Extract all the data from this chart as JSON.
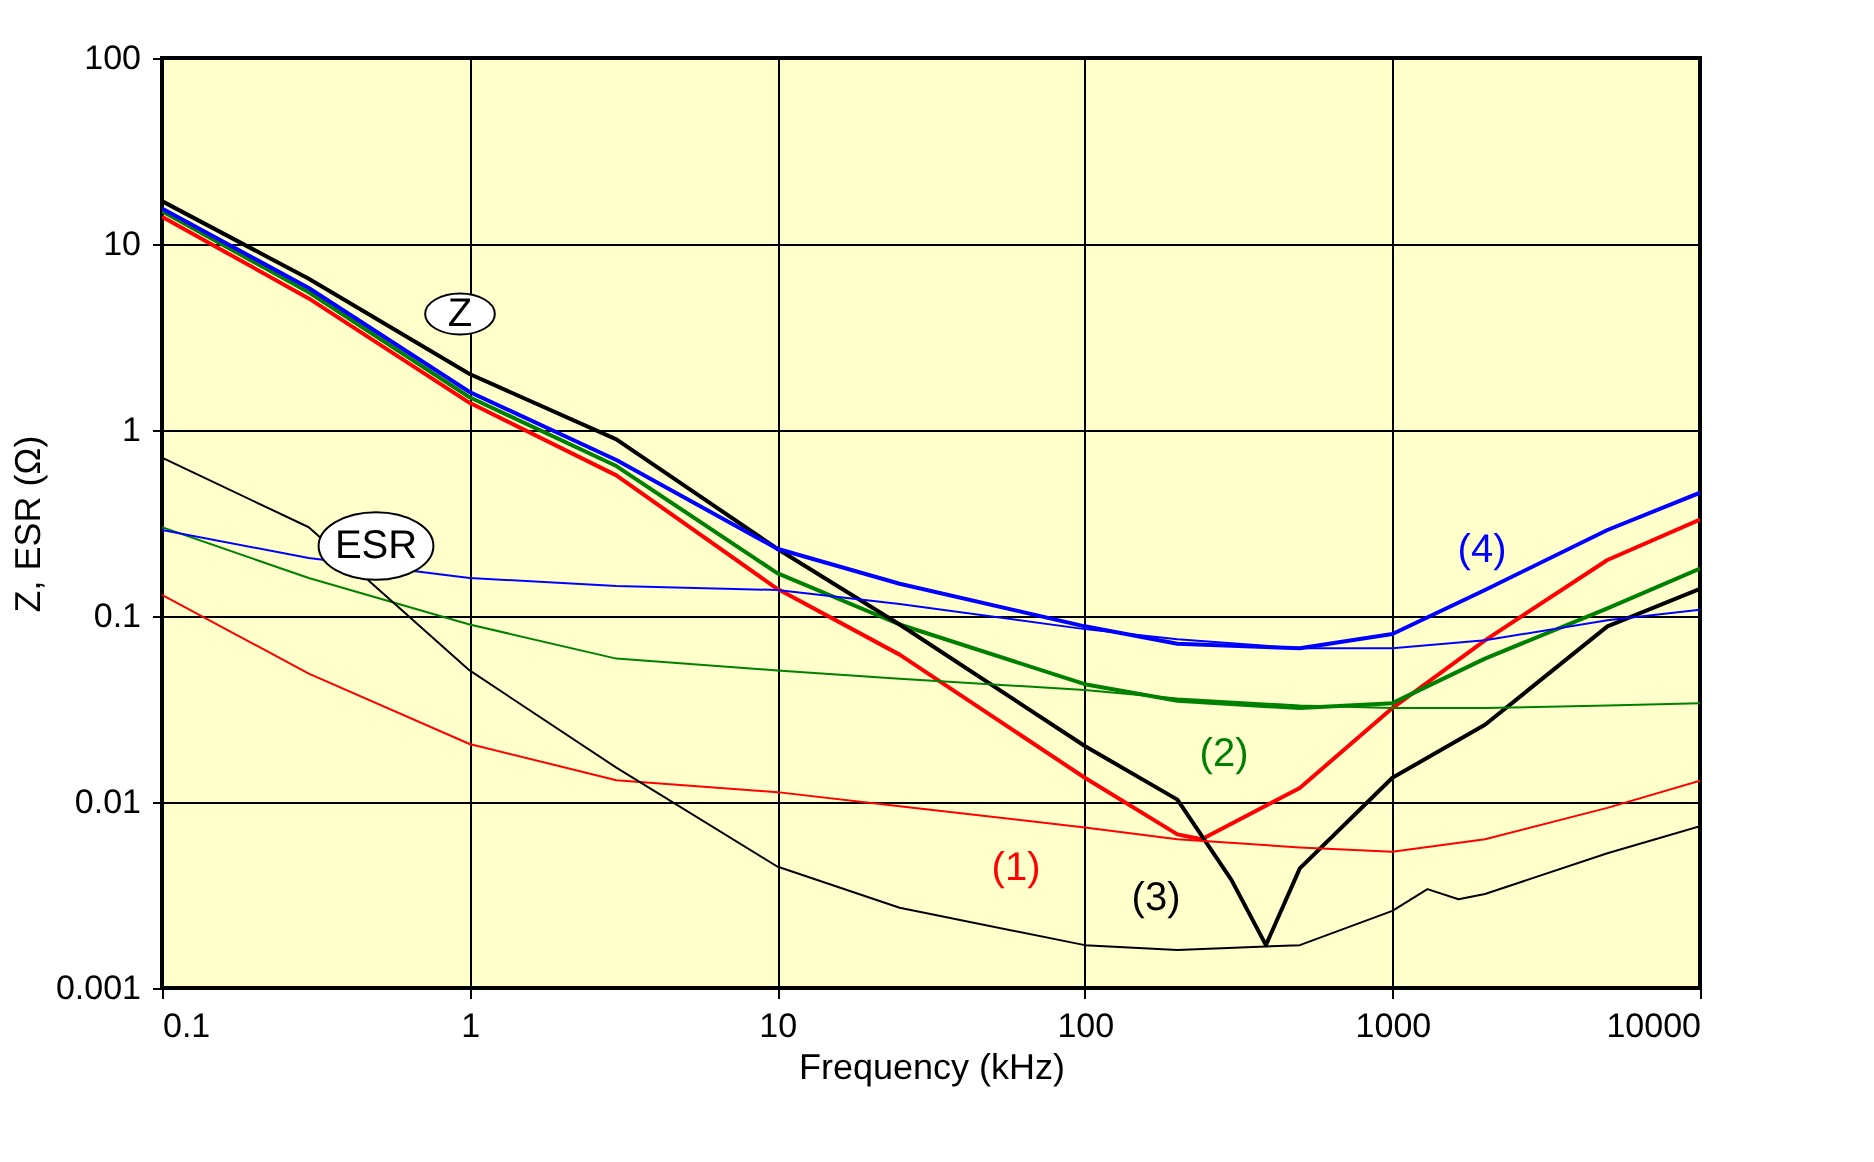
{
  "chart_data": {
    "type": "line",
    "xlabel": "Frequency (kHz)",
    "ylabel": "Z, ESR (Ω)",
    "log": "xy",
    "grid": true,
    "xlim": [
      0.1,
      10000
    ],
    "ylim": [
      0.001,
      100
    ],
    "xticks": [
      0.1,
      1,
      10,
      100,
      1000,
      10000
    ],
    "yticks": [
      0.001,
      0.01,
      0.1,
      1,
      10,
      100
    ],
    "series": [
      {
        "color": "#ff0000",
        "x": [
          0.1,
          0.3,
          1,
          3,
          10,
          25,
          100,
          200,
          240,
          500,
          1000,
          2000,
          5000,
          10000
        ],
        "values": [
          14,
          5.1,
          1.4,
          0.57,
          0.14,
          0.062,
          0.0135,
          0.0067,
          0.0063,
          0.0119,
          0.032,
          0.074,
          0.2,
          0.33
        ]
      },
      {
        "color": "#008000",
        "x": [
          0.1,
          0.3,
          1,
          3,
          10,
          25,
          100,
          200,
          500,
          1000,
          2000,
          5000,
          10000
        ],
        "values": [
          15,
          5.5,
          1.5,
          0.64,
          0.17,
          0.09,
          0.043,
          0.035,
          0.032,
          0.034,
          0.059,
          0.11,
          0.18
        ]
      },
      {
        "color": "#000000",
        "x": [
          0.1,
          0.3,
          1,
          3,
          10,
          25,
          100,
          200,
          300,
          388,
          500,
          1000,
          2000,
          5000,
          10000
        ],
        "values": [
          17,
          6.5,
          2.0,
          0.89,
          0.23,
          0.09,
          0.02,
          0.0103,
          0.0038,
          0.0017,
          0.0044,
          0.0135,
          0.026,
          0.088,
          0.14
        ]
      },
      {
        "color": "#0000ff",
        "x": [
          0.1,
          0.3,
          1,
          3,
          10,
          25,
          100,
          200,
          500,
          1000,
          2000,
          5000,
          10000
        ],
        "values": [
          15.5,
          5.8,
          1.6,
          0.69,
          0.23,
          0.149,
          0.088,
          0.071,
          0.067,
          0.08,
          0.138,
          0.29,
          0.46
        ]
      },
      {
        "color": "#ff0000",
        "x": [
          0.1,
          0.3,
          1,
          3,
          10,
          25,
          100,
          200,
          500,
          1000,
          2000,
          5000,
          10000
        ],
        "values": [
          0.13,
          0.049,
          0.0205,
          0.0131,
          0.0113,
          0.0095,
          0.0073,
          0.0063,
          0.0057,
          0.0054,
          0.0063,
          0.0093,
          0.013
        ]
      },
      {
        "color": "#008000",
        "x": [
          0.1,
          0.3,
          1,
          3,
          10,
          25,
          100,
          200,
          500,
          1000,
          2000,
          5000,
          10000
        ],
        "values": [
          0.3,
          0.16,
          0.09,
          0.059,
          0.051,
          0.046,
          0.04,
          0.036,
          0.033,
          0.032,
          0.032,
          0.033,
          0.034
        ]
      },
      {
        "color": "#000000",
        "x": [
          0.1,
          0.3,
          1,
          3,
          10,
          25,
          100,
          200,
          500,
          1000,
          1300,
          1640,
          2000,
          5000,
          10000
        ],
        "values": [
          0.71,
          0.3,
          0.051,
          0.0153,
          0.0045,
          0.0027,
          0.0017,
          0.0016,
          0.0017,
          0.0026,
          0.0034,
          0.003,
          0.0032,
          0.0053,
          0.0074
        ]
      },
      {
        "color": "#0000ff",
        "x": [
          0.1,
          0.3,
          1,
          3,
          10,
          25,
          100,
          200,
          500,
          1000,
          2000,
          5000,
          10000
        ],
        "values": [
          0.29,
          0.205,
          0.16,
          0.145,
          0.138,
          0.116,
          0.085,
          0.075,
          0.067,
          0.067,
          0.074,
          0.095,
          0.108
        ]
      }
    ],
    "annotations": [
      "(1)",
      "(2)",
      "(3)",
      "(4)",
      "Z",
      "ESR"
    ]
  }
}
